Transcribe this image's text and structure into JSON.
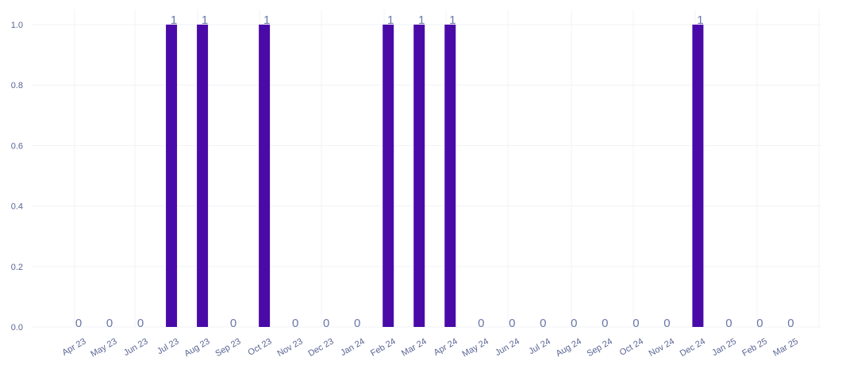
{
  "chart_data": {
    "type": "bar",
    "categories": [
      "Apr 23",
      "May 23",
      "Jun 23",
      "Jul 23",
      "Aug 23",
      "Sep 23",
      "Oct 23",
      "Nov 23",
      "Dec 23",
      "Jan 24",
      "Feb 24",
      "Mar 24",
      "Apr 24",
      "May 24",
      "Jun 24",
      "Jul 24",
      "Aug 24",
      "Sep 24",
      "Oct 24",
      "Nov 24",
      "Dec 24",
      "Jan 25",
      "Feb 25",
      "Mar 25"
    ],
    "values": [
      0,
      0,
      0,
      1,
      1,
      0,
      1,
      0,
      0,
      0,
      1,
      1,
      1,
      0,
      0,
      0,
      0,
      0,
      0,
      0,
      1,
      0,
      0,
      0
    ],
    "data_labels": [
      "0",
      "0",
      "0",
      "1",
      "1",
      "0",
      "1",
      "0",
      "0",
      "0",
      "1",
      "1",
      "1",
      "0",
      "0",
      "0",
      "0",
      "0",
      "0",
      "0",
      "1",
      "0",
      "0",
      "0"
    ],
    "title": "",
    "xlabel": "",
    "ylabel": "",
    "ylim": [
      0,
      1.05
    ],
    "yticks": [
      0,
      0.2,
      0.4,
      0.6,
      0.8,
      1
    ],
    "ytick_labels": [
      "0.0",
      "0.2",
      "0.4",
      "0.6",
      "0.8",
      "1.0"
    ],
    "grid": true,
    "legend": "none",
    "bar_color": "#4a0aa8"
  }
}
